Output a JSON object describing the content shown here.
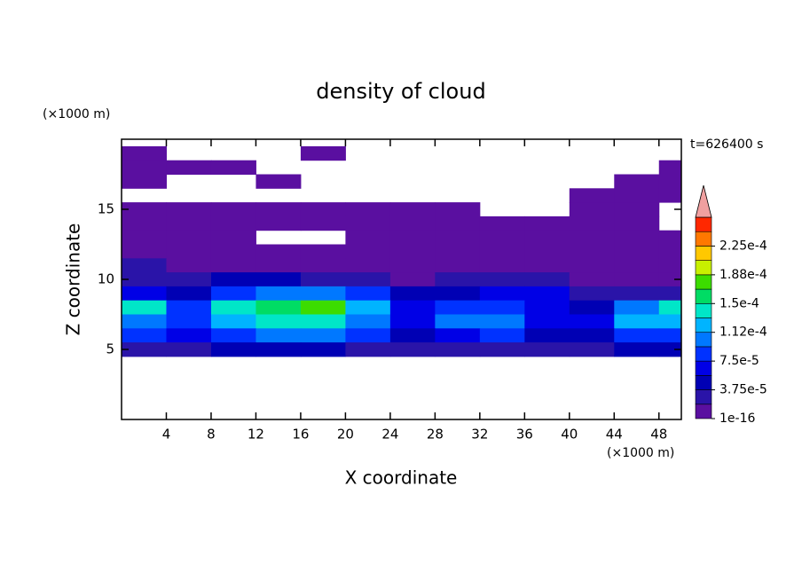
{
  "chart_data": {
    "type": "contour",
    "title": "density of cloud",
    "xlabel": "X coordinate",
    "ylabel": "Z coordinate",
    "x_unit": "(×1000 m)",
    "y_unit": "(×1000 m)",
    "time_label": "t=626400 s",
    "xlim": [
      0,
      50
    ],
    "ylim": [
      0,
      20
    ],
    "xticks": [
      4,
      8,
      12,
      16,
      20,
      24,
      28,
      32,
      36,
      40,
      44,
      48
    ],
    "yticks": [
      5,
      10,
      15
    ],
    "x": [
      2,
      6,
      10,
      14,
      18,
      22,
      26,
      30,
      34,
      38,
      42,
      46,
      50
    ],
    "y": [
      19,
      18,
      17,
      16,
      15,
      14,
      13,
      12,
      11,
      10,
      9,
      8,
      7,
      6,
      5
    ],
    "z": [
      [
        1e-06,
        null,
        null,
        null,
        1e-06,
        null,
        null,
        null,
        null,
        null,
        null,
        null,
        null
      ],
      [
        1e-06,
        1e-06,
        1e-06,
        null,
        null,
        null,
        null,
        null,
        null,
        null,
        null,
        null,
        1e-06
      ],
      [
        1e-06,
        null,
        null,
        1e-06,
        null,
        null,
        null,
        null,
        null,
        null,
        null,
        1e-06,
        1e-06
      ],
      [
        null,
        null,
        null,
        null,
        null,
        null,
        null,
        null,
        null,
        null,
        1e-06,
        1e-06,
        1e-06
      ],
      [
        1e-06,
        1e-06,
        1e-06,
        1e-06,
        1e-06,
        1e-06,
        1e-06,
        1e-06,
        null,
        null,
        1e-06,
        1e-06,
        null
      ],
      [
        1e-06,
        1e-06,
        1e-06,
        1e-06,
        1e-06,
        1e-06,
        1e-06,
        1e-06,
        1e-06,
        1e-06,
        1e-06,
        1e-06,
        null
      ],
      [
        1e-06,
        1e-06,
        1e-06,
        null,
        null,
        5e-06,
        1e-06,
        5e-06,
        1e-06,
        1e-06,
        1e-06,
        1e-06,
        1e-06
      ],
      [
        5e-06,
        1e-06,
        1e-06,
        1e-06,
        5e-06,
        1e-06,
        5e-06,
        1e-06,
        1e-06,
        1e-06,
        1e-06,
        1e-06,
        1e-06
      ],
      [
        2e-05,
        1e-05,
        5e-06,
        1e-06,
        5e-06,
        1e-05,
        5e-06,
        1e-05,
        5e-06,
        5e-06,
        1e-06,
        5e-06,
        5e-06
      ],
      [
        3e-05,
        2e-05,
        4e-05,
        4e-05,
        2e-05,
        2e-05,
        1e-05,
        2e-05,
        3e-05,
        2e-05,
        1e-05,
        1e-05,
        1e-05
      ],
      [
        6e-05,
        5e-05,
        9e-05,
        0.0001,
        0.00011,
        8e-05,
        4e-05,
        5e-05,
        6e-05,
        6e-05,
        3e-05,
        3e-05,
        3e-05
      ],
      [
        0.00014,
        9e-05,
        0.00014,
        0.00016,
        0.00017,
        0.00012,
        6e-05,
        8e-05,
        8e-05,
        7e-05,
        5e-05,
        0.00011,
        0.00014
      ],
      [
        0.00011,
        8e-05,
        0.00013,
        0.00014,
        0.00014,
        0.00011,
        7e-05,
        0.0001,
        0.0001,
        6e-05,
        6e-05,
        0.00012,
        0.00012
      ],
      [
        8e-05,
        6e-05,
        9e-05,
        0.0001,
        0.0001,
        8e-05,
        4e-05,
        7e-05,
        8e-05,
        5e-05,
        5e-05,
        9e-05,
        9e-05
      ],
      [
        3e-05,
        3e-05,
        4e-05,
        4e-05,
        4e-05,
        3e-05,
        2e-05,
        3e-05,
        3e-05,
        2e-05,
        2e-05,
        4e-05,
        4e-05
      ]
    ],
    "levels": [
      1e-16,
      1.875e-05,
      3.75e-05,
      5.625e-05,
      7.5e-05,
      9.375e-05,
      0.0001125,
      0.00013125,
      0.00015,
      0.00016875,
      0.0001875,
      0.00020625,
      0.000225,
      0.00024375
    ],
    "colors": [
      "#5a0fa0",
      "#2a14a8",
      "#0000b4",
      "#0000e6",
      "#0032ff",
      "#0078ff",
      "#00b4ff",
      "#00e6c8",
      "#00dc64",
      "#3cdc00",
      "#c8f000",
      "#ffc800",
      "#ff7800",
      "#ff2800"
    ],
    "extend_color": "#f0a0a0",
    "colorbar_ticks": [
      {
        "value": 1e-16,
        "label": "1e-16"
      },
      {
        "value": 3.75e-05,
        "label": "3.75e-5"
      },
      {
        "value": 7.5e-05,
        "label": "7.5e-5"
      },
      {
        "value": 0.0001125,
        "label": "1.12e-4"
      },
      {
        "value": 0.00015,
        "label": "1.5e-4"
      },
      {
        "value": 0.0001875,
        "label": "1.88e-4"
      },
      {
        "value": 0.000225,
        "label": "2.25e-4"
      }
    ]
  }
}
